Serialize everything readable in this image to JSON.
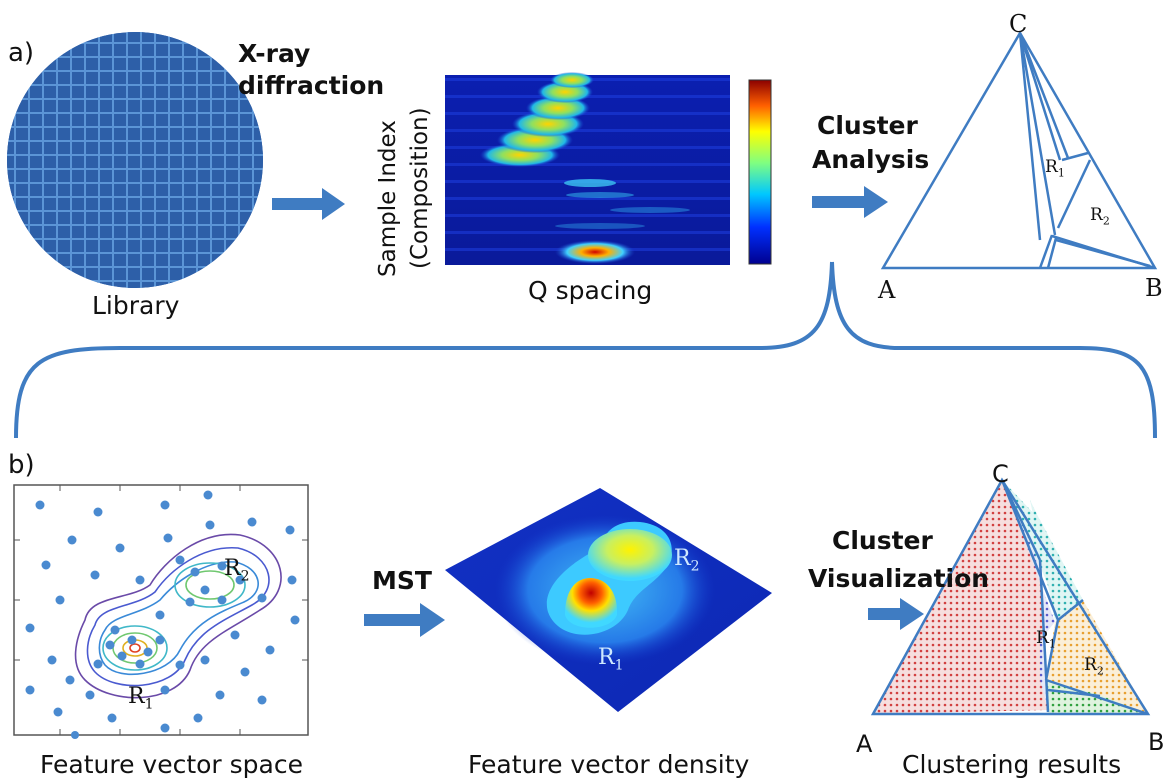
{
  "colors": {
    "accent": "#3f7cc2",
    "wafer": "#2d5fa8",
    "wafer_grid": "#5b95d6"
  },
  "panel_a": {
    "tag": "a)",
    "xrd_label_line1": "X-ray",
    "xrd_label_line2": "diffraction",
    "library_caption": "Library",
    "heatmap_ylabel_line1": "Sample Index",
    "heatmap_ylabel_line2": "(Composition)",
    "heatmap_xlabel": "Q spacing",
    "cluster_line1": "Cluster",
    "cluster_line2": "Analysis",
    "vertex_a": "A",
    "vertex_b": "B",
    "vertex_c": "C",
    "region_1": "R",
    "region_1_sub": "1",
    "region_2": "R",
    "region_2_sub": "2"
  },
  "panel_b": {
    "tag": "b)",
    "mst_label": "MST",
    "vis_line1": "Cluster",
    "vis_line2": "Visualization",
    "caption_space": "Feature vector space",
    "caption_density": "Feature vector density",
    "caption_results": "Clustering results",
    "space_r1": "R",
    "space_r1_sub": "1",
    "space_r2": "R",
    "space_r2_sub": "2",
    "density_r1": "R",
    "density_r1_sub": "1",
    "density_r2": "R",
    "density_r2_sub": "2",
    "result_r1": "R",
    "result_r1_sub": "1",
    "result_r2": "R",
    "result_r2_sub": "2",
    "vertex_a": "A",
    "vertex_b": "B",
    "vertex_c": "C"
  }
}
